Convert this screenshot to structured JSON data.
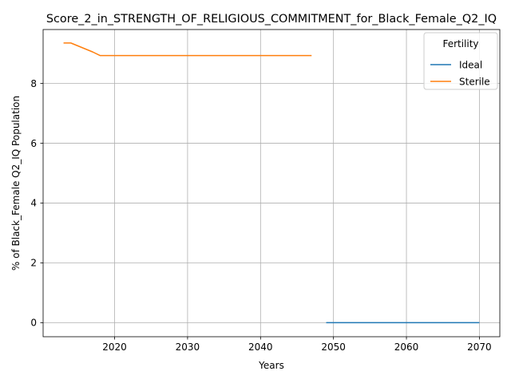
{
  "chart_data": {
    "type": "line",
    "title": "Score_2_in_STRENGTH_OF_RELIGIOUS_COMMITMENT_for_Black_Female_Q2_IQ",
    "xlabel": "Years",
    "ylabel": "% of Black_Female Q2_IQ Population",
    "xlim": [
      2010.2,
      2072.8
    ],
    "ylim": [
      -0.47,
      9.8
    ],
    "xticks": [
      2020,
      2030,
      2040,
      2050,
      2060,
      2070
    ],
    "yticks": [
      0,
      2,
      4,
      6,
      8
    ],
    "grid": true,
    "legend": {
      "title": "Fertility",
      "placement": "top-right"
    },
    "series": [
      {
        "name": "Ideal",
        "color": "#1f77b4",
        "x": [
          2049,
          2050,
          2055,
          2060,
          2065,
          2070
        ],
        "y": [
          0,
          0,
          0,
          0,
          0,
          0
        ]
      },
      {
        "name": "Sterile",
        "color": "#ff7f0e",
        "x": [
          2013,
          2014,
          2015,
          2016,
          2017,
          2018,
          2020,
          2025,
          2030,
          2035,
          2040,
          2045,
          2047
        ],
        "y": [
          9.35,
          9.35,
          9.25,
          9.15,
          9.05,
          8.93,
          8.93,
          8.93,
          8.93,
          8.93,
          8.93,
          8.93,
          8.93
        ]
      }
    ]
  }
}
